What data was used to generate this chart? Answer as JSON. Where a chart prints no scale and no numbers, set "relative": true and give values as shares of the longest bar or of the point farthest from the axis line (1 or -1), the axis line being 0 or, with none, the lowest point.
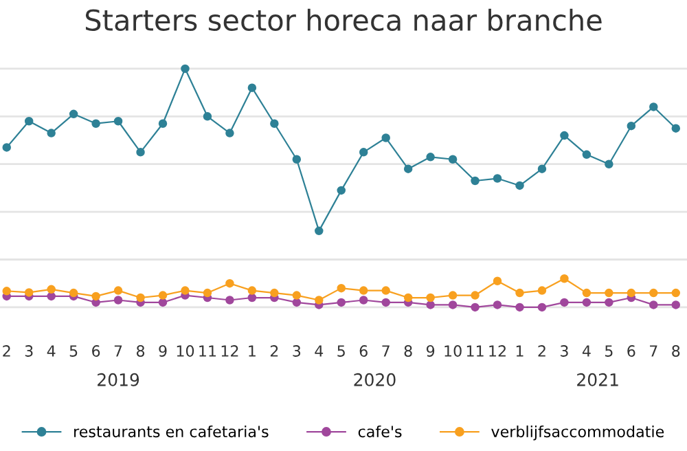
{
  "chart_data": {
    "type": "line",
    "title": "Starters sector horeca naar branche",
    "categories": [
      "2",
      "3",
      "4",
      "5",
      "6",
      "7",
      "8",
      "9",
      "10",
      "11",
      "12",
      "1",
      "2",
      "3",
      "4",
      "5",
      "6",
      "7",
      "8",
      "9",
      "10",
      "11",
      "12",
      "1",
      "2",
      "3",
      "4",
      "5",
      "6",
      "7",
      "8"
    ],
    "relative": true,
    "grid": "y",
    "legend": "bottom",
    "marker": "circle",
    "line_style": "solid",
    "annotations": [
      "2019",
      "2020",
      "2021"
    ],
    "series": [
      {
        "name": "restaurants en cafetaria's",
        "color": "#2e8196",
        "values": [
          0.67,
          0.78,
          0.73,
          0.81,
          0.77,
          0.78,
          0.65,
          0.77,
          1.0,
          0.8,
          0.73,
          0.92,
          0.77,
          0.62,
          0.32,
          0.49,
          0.65,
          0.71,
          0.58,
          0.63,
          0.62,
          0.53,
          0.54,
          0.51,
          0.58,
          0.72,
          0.64,
          0.6,
          0.76,
          0.84,
          0.75
        ]
      },
      {
        "name": "cafe's",
        "color": "#a0479c",
        "values": [
          0.046,
          0.046,
          0.046,
          0.046,
          0.02,
          0.03,
          0.02,
          0.02,
          0.05,
          0.04,
          0.03,
          0.04,
          0.04,
          0.02,
          0.01,
          0.02,
          0.03,
          0.02,
          0.02,
          0.01,
          0.01,
          0.0,
          0.01,
          0.0,
          0.0,
          0.02,
          0.02,
          0.02,
          0.04,
          0.01,
          0.01
        ]
      },
      {
        "name": "verblijfsaccommodatie",
        "color": "#f8a01f",
        "values": [
          0.068,
          0.062,
          0.075,
          0.06,
          0.046,
          0.07,
          0.04,
          0.05,
          0.07,
          0.06,
          0.1,
          0.07,
          0.06,
          0.05,
          0.03,
          0.08,
          0.07,
          0.07,
          0.04,
          0.04,
          0.05,
          0.05,
          0.11,
          0.06,
          0.07,
          0.12,
          0.06,
          0.06,
          0.06,
          0.06,
          0.06
        ]
      }
    ]
  }
}
